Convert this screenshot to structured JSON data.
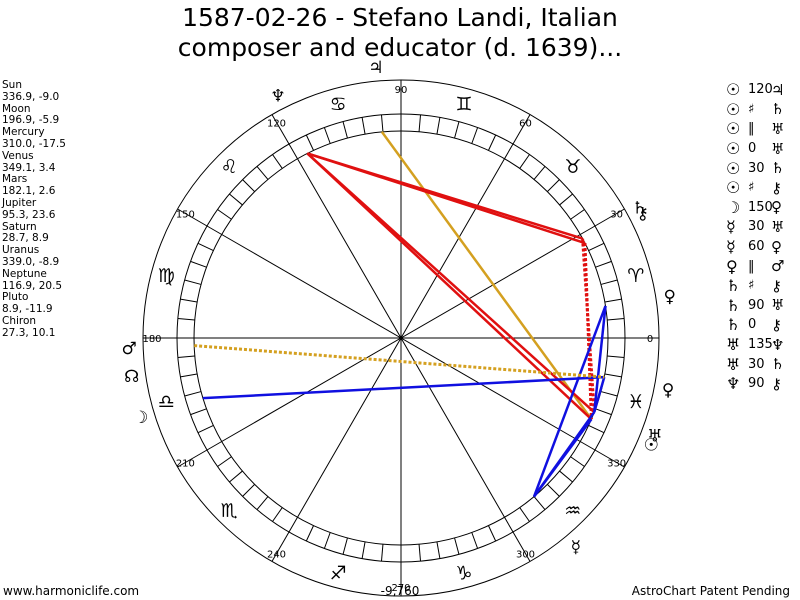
{
  "title": {
    "line1": "1587-02-26 - Stefano Landi, Italian",
    "line2": "composer and educator (d. 1639)..."
  },
  "positions": [
    {
      "name": "Sun",
      "values": "336.9, -9.0"
    },
    {
      "name": "Moon",
      "values": "196.9, -5.9"
    },
    {
      "name": "Mercury",
      "values": "310.0, -17.5"
    },
    {
      "name": "Venus",
      "values": "349.1, 3.4"
    },
    {
      "name": "Mars",
      "values": "182.1, 2.6"
    },
    {
      "name": "Jupiter",
      "values": "95.3, 23.6"
    },
    {
      "name": "Saturn",
      "values": "28.7, 8.9"
    },
    {
      "name": "Uranus",
      "values": "339.0, -8.9"
    },
    {
      "name": "Neptune",
      "values": "116.9, 20.5"
    },
    {
      "name": "Pluto",
      "values": "8.9, -11.9"
    },
    {
      "name": "Chiron",
      "values": "27.3, 10.1"
    }
  ],
  "aspects": [
    {
      "p1": "☉",
      "aspect": "120",
      "p2": "♃"
    },
    {
      "p1": "☉",
      "aspect": "♯",
      "p2": "♄"
    },
    {
      "p1": "☉",
      "aspect": "‖",
      "p2": "♅"
    },
    {
      "p1": "☉",
      "aspect": "0",
      "p2": "♅"
    },
    {
      "p1": "☉",
      "aspect": "30",
      "p2": "♄"
    },
    {
      "p1": "☉",
      "aspect": "♯",
      "p2": "⚷"
    },
    {
      "p1": "☽",
      "aspect": "150",
      "p2": "♀"
    },
    {
      "p1": "☿",
      "aspect": "30",
      "p2": "♅"
    },
    {
      "p1": "☿",
      "aspect": "60",
      "p2": "♀"
    },
    {
      "p1": "♀",
      "aspect": "‖",
      "p2": "♂"
    },
    {
      "p1": "♄",
      "aspect": "♯",
      "p2": "⚷"
    },
    {
      "p1": "♄",
      "aspect": "90",
      "p2": "♅"
    },
    {
      "p1": "♄",
      "aspect": "0",
      "p2": "⚷"
    },
    {
      "p1": "♅",
      "aspect": "135",
      "p2": "♆"
    },
    {
      "p1": "♅",
      "aspect": "30",
      "p2": "♄"
    },
    {
      "p1": "♆",
      "aspect": "90",
      "p2": "⚷"
    }
  ],
  "wheel": {
    "degree_labels": [
      {
        "deg": 0,
        "text": "0"
      },
      {
        "deg": 30,
        "text": "30"
      },
      {
        "deg": 60,
        "text": "60"
      },
      {
        "deg": 90,
        "text": "90"
      },
      {
        "deg": 120,
        "text": "120"
      },
      {
        "deg": 150,
        "text": "150"
      },
      {
        "deg": 180,
        "text": "180"
      },
      {
        "deg": 210,
        "text": "210"
      },
      {
        "deg": 240,
        "text": "240"
      },
      {
        "deg": 270,
        "text": "270"
      },
      {
        "deg": 300,
        "text": "300"
      },
      {
        "deg": 330,
        "text": "330"
      }
    ],
    "signs": [
      {
        "deg": 15,
        "glyph": "♈"
      },
      {
        "deg": 45,
        "glyph": "♉"
      },
      {
        "deg": 75,
        "glyph": "♊"
      },
      {
        "deg": 105,
        "glyph": "♋"
      },
      {
        "deg": 135,
        "glyph": "♌"
      },
      {
        "deg": 165,
        "glyph": "♍"
      },
      {
        "deg": 195,
        "glyph": "♎"
      },
      {
        "deg": 225,
        "glyph": "♏"
      },
      {
        "deg": 255,
        "glyph": "♐"
      },
      {
        "deg": 285,
        "glyph": "♑"
      },
      {
        "deg": 315,
        "glyph": "♒"
      },
      {
        "deg": 345,
        "glyph": "♓"
      }
    ],
    "planets": [
      {
        "name": "Sun",
        "deg": 336.9,
        "glyph": "☉"
      },
      {
        "name": "Moon",
        "deg": 196.9,
        "glyph": "☽"
      },
      {
        "name": "Mercury",
        "deg": 310.0,
        "glyph": "☿"
      },
      {
        "name": "Venus",
        "deg": 349.1,
        "glyph": "♀"
      },
      {
        "name": "Mars",
        "deg": 182.1,
        "glyph": "♂"
      },
      {
        "name": "Jupiter",
        "deg": 95.3,
        "glyph": "♃"
      },
      {
        "name": "Saturn",
        "deg": 28.7,
        "glyph": "♄"
      },
      {
        "name": "Uranus",
        "deg": 339.0,
        "glyph": "♅"
      },
      {
        "name": "Neptune",
        "deg": 116.9,
        "glyph": "♆"
      },
      {
        "name": "Pluto",
        "deg": 8.9,
        "glyph": "♀"
      },
      {
        "name": "Chiron",
        "deg": 27.3,
        "glyph": "⚷"
      },
      {
        "name": "Node",
        "deg": 188.0,
        "glyph": "☊"
      }
    ],
    "aspect_lines": [
      {
        "from": 336.9,
        "to": 95.3,
        "color": "#d4a020",
        "style": "solid"
      },
      {
        "from": 336.9,
        "to": 116.9,
        "color": "#e01010",
        "style": "solid"
      },
      {
        "from": 339.0,
        "to": 116.9,
        "color": "#e01010",
        "style": "solid"
      },
      {
        "from": 116.9,
        "to": 28.7,
        "color": "#e01010",
        "style": "solid"
      },
      {
        "from": 116.9,
        "to": 27.3,
        "color": "#e01010",
        "style": "solid"
      },
      {
        "from": 28.7,
        "to": 339.0,
        "color": "#e01010",
        "style": "dotted"
      },
      {
        "from": 27.3,
        "to": 336.9,
        "color": "#e01010",
        "style": "dotted"
      },
      {
        "from": 196.9,
        "to": 349.1,
        "color": "#1010e0",
        "style": "solid"
      },
      {
        "from": 310.0,
        "to": 8.9,
        "color": "#1010e0",
        "style": "solid"
      },
      {
        "from": 310.0,
        "to": 336.9,
        "color": "#1010e0",
        "style": "solid"
      },
      {
        "from": 310.0,
        "to": 339.0,
        "color": "#1010e0",
        "style": "solid"
      },
      {
        "from": 349.1,
        "to": 339.0,
        "color": "#1010e0",
        "style": "solid"
      },
      {
        "from": 8.9,
        "to": 339.0,
        "color": "#1010e0",
        "style": "solid"
      },
      {
        "from": 182.1,
        "to": 349.1,
        "color": "#d4a020",
        "style": "dotted"
      }
    ]
  },
  "footer": {
    "left": "www.harmoniclife.com",
    "center": "-9,760",
    "right": "AstroChart Patent Pending"
  }
}
